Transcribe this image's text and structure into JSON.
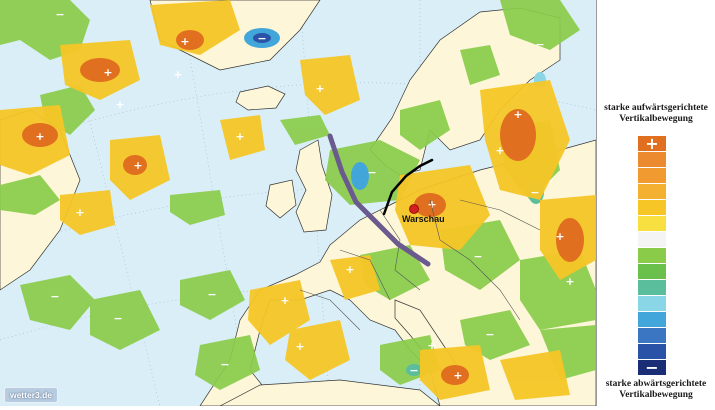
{
  "map": {
    "city_label": "Warschau",
    "watermark": "wetter3.de",
    "sea_color": "#d9eef7",
    "land_color": "#fdf6d8",
    "plus_symbol": "+",
    "minus_symbol": "−",
    "front_colors": {
      "purple_line": "#6a5a8e",
      "black_line": "#000000"
    }
  },
  "legend": {
    "top_title": "starke aufwärtsgerichtete Vertikalbewegung",
    "bottom_title": "starke abwärtsgerichtete Vertikalbewegung",
    "plus_symbol": "+",
    "minus_symbol": "−",
    "colors": [
      "#e07020",
      "#ec8a30",
      "#f09a30",
      "#f4b030",
      "#f6c626",
      "#f8e040",
      "#f4f4f4",
      "#8acc4a",
      "#6ac04a",
      "#5abe9c",
      "#8ad6e6",
      "#42a6da",
      "#3a76c2",
      "#2a52a6",
      "#1a2e76"
    ]
  }
}
